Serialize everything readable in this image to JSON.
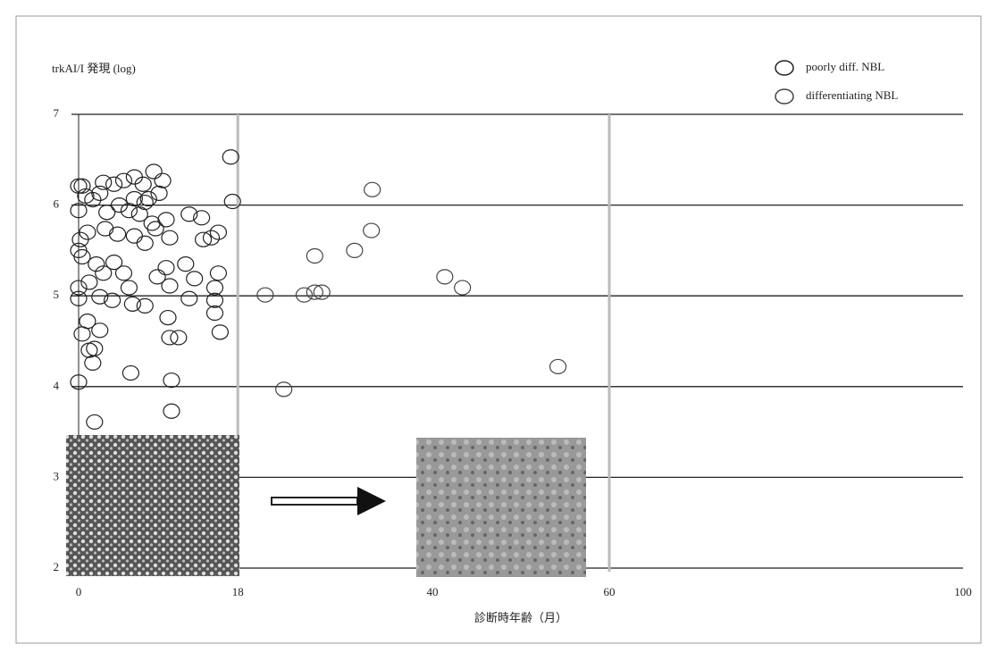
{
  "chart_data": {
    "type": "scatter",
    "y_label": "trkAI/I 発現 (log)",
    "x_label": "診断時年齢（月）",
    "xlim": [
      0,
      100
    ],
    "xticks": [
      0,
      18,
      40,
      60,
      100
    ],
    "ylim": [
      2,
      7
    ],
    "yticks": [
      2,
      3,
      4,
      5,
      6,
      7
    ],
    "vlines": [
      18,
      60
    ],
    "grid": true,
    "legend": "top-right",
    "series": [
      {
        "name": "poorly  diff. NBL",
        "color": "#222",
        "x": [
          17.2,
          17.4,
          0,
          0.4,
          0,
          0.8,
          1.6,
          2.4,
          2.8,
          4.0,
          5.1,
          6.3,
          7.3,
          8.5,
          9.5,
          9.1,
          7.9,
          6.3,
          4.6,
          3.2,
          5.7,
          6.9,
          8.3,
          9.9,
          12.5,
          13.9,
          15.8,
          15.0,
          14.1,
          10.3,
          7.5,
          6.3,
          4.4,
          3.0,
          1.0,
          0.2,
          0,
          0.4,
          2.0,
          4.0,
          5.1,
          2.8,
          1.2,
          0,
          0,
          2.4,
          3.8,
          5.7,
          8.9,
          9.9,
          12.1,
          13.1,
          15.8,
          15.4,
          10.3,
          12.5,
          6.1,
          7.5,
          15.4,
          15.4,
          1.0,
          0.4,
          2.4,
          1.2,
          1.8,
          1.6,
          10.3,
          11.3,
          16.0,
          10.1,
          5.9,
          10.5,
          0,
          10.5,
          1.8,
          7.5,
          8.7
        ],
        "values": [
          6.53,
          6.04,
          6.21,
          6.21,
          5.94,
          6.1,
          6.06,
          6.13,
          6.25,
          6.23,
          6.27,
          6.31,
          6.23,
          6.37,
          6.27,
          6.13,
          6.07,
          6.07,
          6.0,
          5.92,
          5.94,
          5.9,
          5.8,
          5.84,
          5.9,
          5.86,
          5.7,
          5.64,
          5.62,
          5.64,
          5.58,
          5.66,
          5.68,
          5.74,
          5.7,
          5.62,
          5.5,
          5.43,
          5.35,
          5.37,
          5.25,
          5.25,
          5.15,
          5.09,
          4.97,
          4.99,
          4.95,
          5.09,
          5.21,
          5.31,
          5.35,
          5.19,
          5.25,
          5.09,
          5.11,
          4.97,
          4.91,
          4.89,
          4.95,
          4.81,
          4.72,
          4.58,
          4.62,
          4.4,
          4.42,
          4.26,
          4.54,
          4.54,
          4.6,
          4.76,
          4.15,
          4.07,
          4.05,
          3.73,
          3.61,
          6.03,
          5.74
        ]
      },
      {
        "name": "differentiating NBL",
        "color": "#444",
        "x": [
          33.2,
          33.1,
          31.2,
          26.7,
          21.1,
          25.5,
          26.7,
          27.5,
          41.4,
          43.4,
          54.2,
          23.2
        ],
        "values": [
          6.17,
          5.72,
          5.5,
          5.44,
          5.01,
          5.01,
          5.04,
          5.04,
          5.21,
          5.09,
          4.22,
          3.97
        ]
      }
    ]
  }
}
